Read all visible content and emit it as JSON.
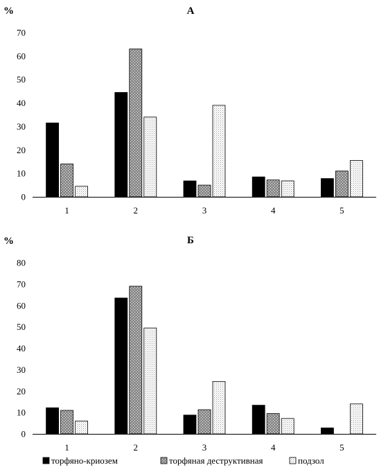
{
  "chart_data": [
    {
      "type": "bar",
      "title": "А",
      "ylabel": "%",
      "categories": [
        "1",
        "2",
        "3",
        "4",
        "5"
      ],
      "ylim": [
        0,
        70
      ],
      "yticks": [
        0,
        10,
        20,
        30,
        40,
        50,
        60,
        70
      ],
      "grid": false,
      "series": [
        {
          "name": "торфяно-криозем",
          "values": [
            31.5,
            44.5,
            6.8,
            8.5,
            7.8
          ]
        },
        {
          "name": "торфяная деструктивная",
          "values": [
            14,
            63,
            5,
            7.2,
            11
          ]
        },
        {
          "name": "подзол",
          "values": [
            4.5,
            34,
            39,
            6.8,
            15.5
          ]
        }
      ]
    },
    {
      "type": "bar",
      "title": "Б",
      "ylabel": "%",
      "categories": [
        "1",
        "2",
        "3",
        "4",
        "5"
      ],
      "ylim": [
        0,
        80
      ],
      "yticks": [
        0,
        10,
        20,
        30,
        40,
        50,
        60,
        70,
        80
      ],
      "grid": false,
      "series": [
        {
          "name": "торфяно-криозем",
          "values": [
            12.2,
            63.5,
            8.8,
            13.4,
            2.8
          ]
        },
        {
          "name": "торфяная деструктивная",
          "values": [
            11,
            69,
            11.3,
            9.5,
            0
          ]
        },
        {
          "name": "подзол",
          "values": [
            6,
            49.5,
            24.5,
            7.2,
            14
          ]
        }
      ],
      "legend": {
        "position": "bottom",
        "entries": [
          "торфяно-криозем",
          "торфяная деструктивная",
          "подзол"
        ]
      }
    }
  ],
  "series_style": {
    "торфяно-криозем": {
      "pattern": "solid",
      "color": "#000000"
    },
    "торфяная деструктивная": {
      "pattern": "crosshatch",
      "color": "#8a8a8a"
    },
    "подзол": {
      "pattern": "dots",
      "color": "#b0b0b0"
    }
  }
}
